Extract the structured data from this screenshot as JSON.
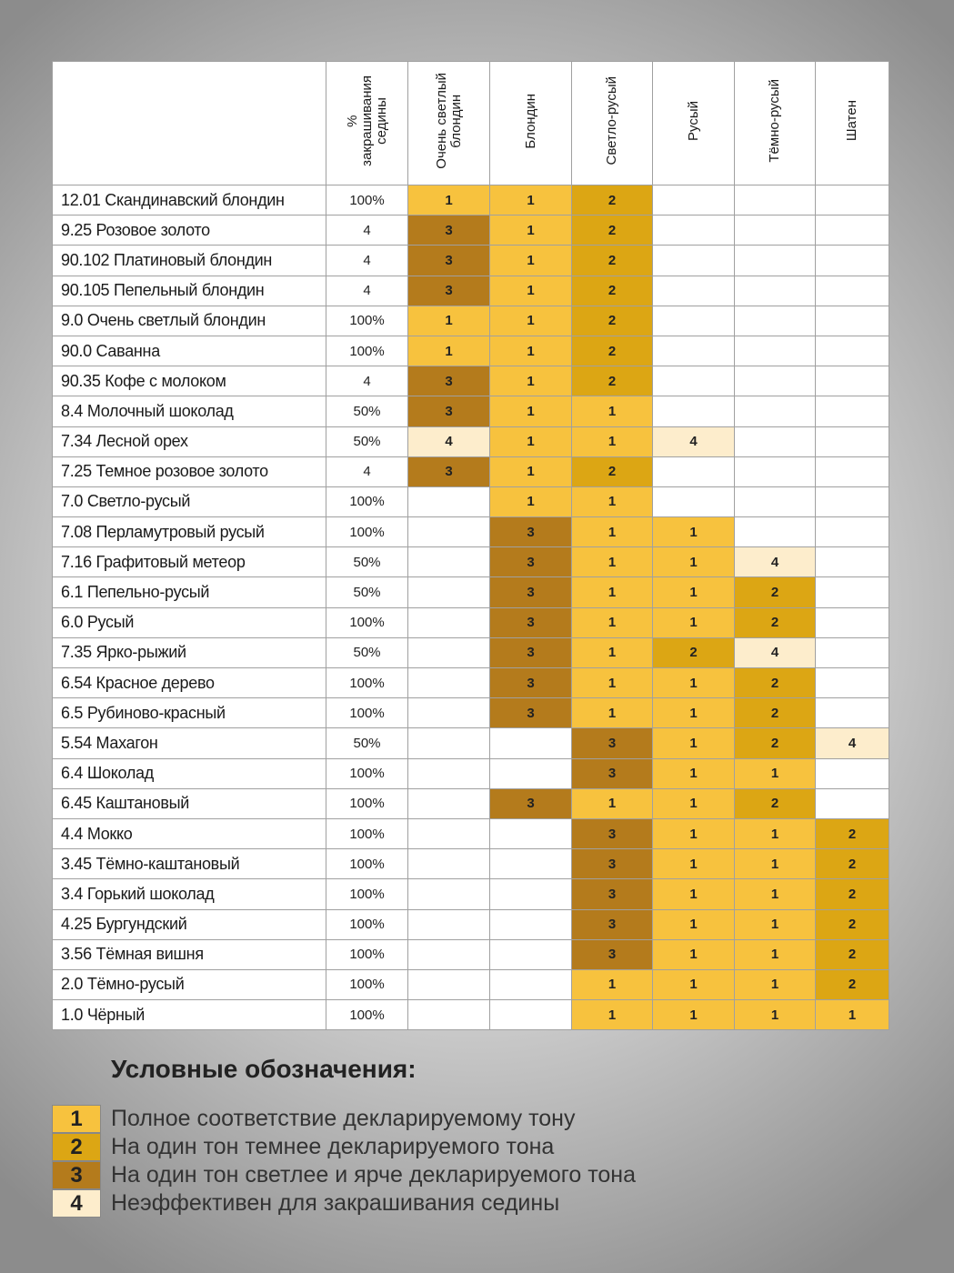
{
  "table": {
    "header": [
      [
        "%",
        "закрашивания",
        "седины"
      ],
      [
        "Очень светлый",
        "блондин"
      ],
      [
        "Блондин"
      ],
      [
        "Светло-русый"
      ],
      [
        "Русый"
      ],
      [
        "Тёмно-русый"
      ],
      [
        "Шатен"
      ]
    ],
    "rows": [
      [
        "12.01 Скандинавский блондин",
        "100%",
        "1",
        "1",
        "2",
        null,
        null,
        null
      ],
      [
        "9.25 Розовое золото",
        "4",
        "3",
        "1",
        "2",
        null,
        null,
        null
      ],
      [
        "90.102 Платиновый блондин",
        "4",
        "3",
        "1",
        "2",
        null,
        null,
        null
      ],
      [
        "90.105 Пепельный блондин",
        "4",
        "3",
        "1",
        "2",
        null,
        null,
        null
      ],
      [
        "9.0 Очень светлый блондин",
        "100%",
        "1",
        "1",
        "2",
        null,
        null,
        null
      ],
      [
        "90.0  Саванна",
        "100%",
        "1",
        "1",
        "2",
        null,
        null,
        null
      ],
      [
        "90.35  Кофе с молоком",
        "4",
        "3",
        "1",
        "2",
        null,
        null,
        null
      ],
      [
        "8.4 Молочный шоколад",
        "50%",
        "3",
        "1",
        "1",
        null,
        null,
        null
      ],
      [
        "7.34 Лесной орех",
        "50%",
        "4",
        "1",
        "1",
        "4",
        null,
        null
      ],
      [
        "7.25 Темное розовое золото",
        "4",
        "3",
        "1",
        "2",
        null,
        null,
        null
      ],
      [
        "7.0 Светло-русый",
        "100%",
        null,
        "1",
        "1",
        null,
        null,
        null
      ],
      [
        "7.08 Перламутровый русый",
        "100%",
        null,
        "3",
        "1",
        "1",
        null,
        null
      ],
      [
        "7.16 Графитовый метеор",
        "50%",
        null,
        "3",
        "1",
        "1",
        "4",
        null
      ],
      [
        "6.1 Пепельно-русый",
        "50%",
        null,
        "3",
        "1",
        "1",
        "2",
        null
      ],
      [
        "6.0 Русый",
        "100%",
        null,
        "3",
        "1",
        "1",
        "2",
        null
      ],
      [
        "7.35  Ярко-рыжий",
        "50%",
        null,
        "3",
        "1",
        "2",
        "4",
        null
      ],
      [
        "6.54 Красное дерево",
        "100%",
        null,
        "3",
        "1",
        "1",
        "2",
        null
      ],
      [
        "6.5 Рубиново-красный",
        "100%",
        null,
        "3",
        "1",
        "1",
        "2",
        null
      ],
      [
        "5.54  Махагон",
        "50%",
        null,
        null,
        "3",
        "1",
        "2",
        "4"
      ],
      [
        "6.4 Шоколад",
        "100%",
        null,
        null,
        "3",
        "1",
        "1",
        null
      ],
      [
        "6.45 Каштановый",
        "100%",
        null,
        "3",
        "1",
        "1",
        "2",
        null
      ],
      [
        "4.4 Мокко",
        "100%",
        null,
        null,
        "3",
        "1",
        "1",
        "2"
      ],
      [
        "3.45 Тёмно-каштановый",
        "100%",
        null,
        null,
        "3",
        "1",
        "1",
        "2"
      ],
      [
        "3.4 Горький шоколад",
        "100%",
        null,
        null,
        "3",
        "1",
        "1",
        "2"
      ],
      [
        "4.25 Бургундский",
        "100%",
        null,
        null,
        "3",
        "1",
        "1",
        "2"
      ],
      [
        "3.56 Тёмная вишня",
        "100%",
        null,
        null,
        "3",
        "1",
        "1",
        "2"
      ],
      [
        "2.0 Тёмно-русый",
        "100%",
        null,
        null,
        "1",
        "1",
        "1",
        "2"
      ],
      [
        "1.0 Чёрный",
        "100%",
        null,
        null,
        "1",
        "1",
        "1",
        "1"
      ]
    ]
  },
  "legend": {
    "title": "Условные обозначения:",
    "items": [
      {
        "code": "1",
        "color": "#f7c23e",
        "text": "Полное соответствие декларируемому тону"
      },
      {
        "code": "2",
        "color": "#dca614",
        "text": "На один тон темнее декларируемого тона"
      },
      {
        "code": "3",
        "color": "#b47b1c",
        "text": "На один тон светлее и ярче декларируемого тона"
      },
      {
        "code": "4",
        "color": "#fdedcc",
        "text": "Неэффективен для закрашивания седины"
      }
    ]
  }
}
